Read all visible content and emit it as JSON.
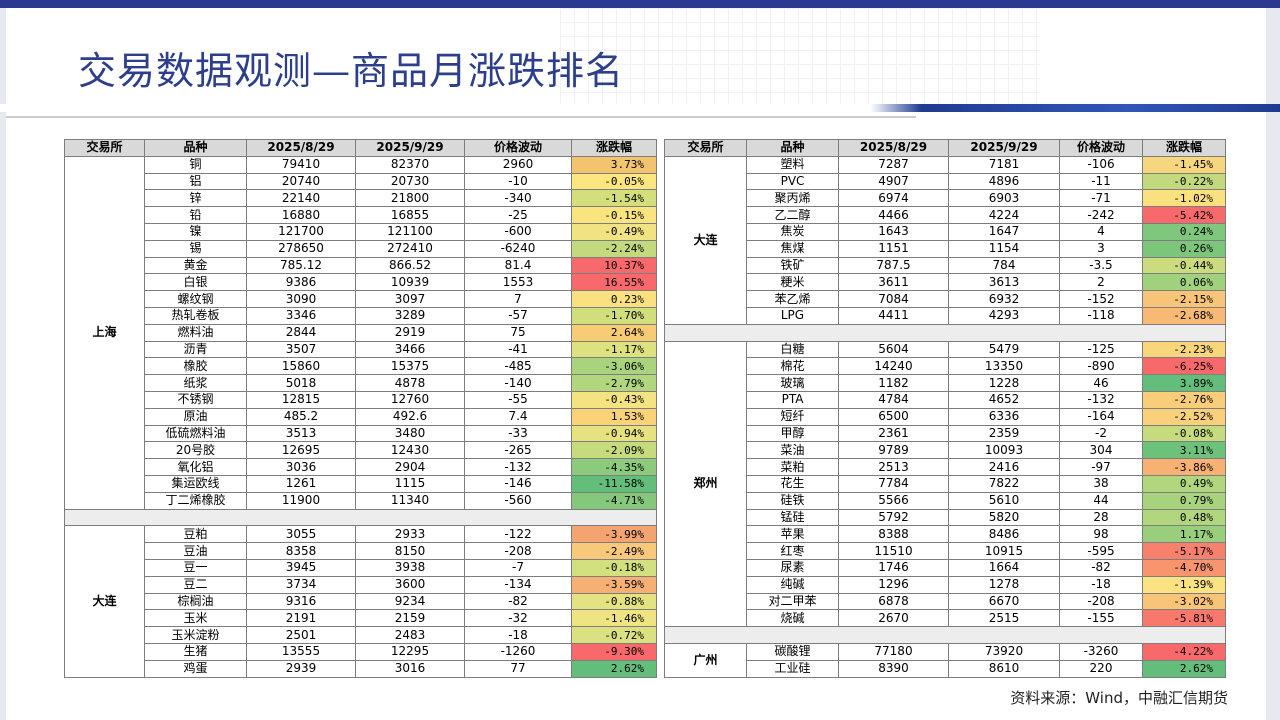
{
  "title": "交易数据观测—商品月涨跌排名",
  "source": "资料来源：Wind，中融汇信期货",
  "headers": [
    "交易所",
    "品种",
    "2025/8/29",
    "2025/9/29",
    "价格波动",
    "涨跌幅"
  ],
  "left_groups": [
    {
      "exchange": "上海",
      "rows": [
        {
          "name": "铜",
          "v1": "79410",
          "v2": "82370",
          "chg": "2960",
          "pct": "3.73%",
          "color": "#f3c46e"
        },
        {
          "name": "铝",
          "v1": "20740",
          "v2": "20730",
          "chg": "-10",
          "pct": "-0.05%",
          "color": "#fbe680"
        },
        {
          "name": "锌",
          "v1": "22140",
          "v2": "21800",
          "chg": "-340",
          "pct": "-1.54%",
          "color": "#d4df7c"
        },
        {
          "name": "铅",
          "v1": "16880",
          "v2": "16855",
          "chg": "-25",
          "pct": "-0.15%",
          "color": "#f9e480"
        },
        {
          "name": "镍",
          "v1": "121700",
          "v2": "121100",
          "chg": "-600",
          "pct": "-0.49%",
          "color": "#f1e381"
        },
        {
          "name": "锡",
          "v1": "278650",
          "v2": "272410",
          "chg": "-6240",
          "pct": "-2.24%",
          "color": "#c2da7d"
        },
        {
          "name": "黄金",
          "v1": "785.12",
          "v2": "866.52",
          "chg": "81.4",
          "pct": "10.37%",
          "color": "#f8696b"
        },
        {
          "name": "白银",
          "v1": "9386",
          "v2": "10939",
          "chg": "1553",
          "pct": "16.55%",
          "color": "#f8696b"
        },
        {
          "name": "螺纹钢",
          "v1": "3090",
          "v2": "3097",
          "chg": "7",
          "pct": "0.23%",
          "color": "#fbe080"
        },
        {
          "name": "热轧卷板",
          "v1": "3346",
          "v2": "3289",
          "chg": "-57",
          "pct": "-1.70%",
          "color": "#d0de7c"
        },
        {
          "name": "燃料油",
          "v1": "2844",
          "v2": "2919",
          "chg": "75",
          "pct": "2.64%",
          "color": "#f8cc74"
        },
        {
          "name": "沥青",
          "v1": "3507",
          "v2": "3466",
          "chg": "-41",
          "pct": "-1.17%",
          "color": "#dde17e"
        },
        {
          "name": "橡胶",
          "v1": "15860",
          "v2": "15375",
          "chg": "-485",
          "pct": "-3.06%",
          "color": "#a9d37d"
        },
        {
          "name": "纸浆",
          "v1": "5018",
          "v2": "4878",
          "chg": "-140",
          "pct": "-2.79%",
          "color": "#b2d67d"
        },
        {
          "name": "不锈钢",
          "v1": "12815",
          "v2": "12760",
          "chg": "-55",
          "pct": "-0.43%",
          "color": "#f3e381"
        },
        {
          "name": "原油",
          "v1": "485.2",
          "v2": "492.6",
          "chg": "7.4",
          "pct": "1.53%",
          "color": "#fad379"
        },
        {
          "name": "低硫燃料油",
          "v1": "3513",
          "v2": "3480",
          "chg": "-33",
          "pct": "-0.94%",
          "color": "#e6e27f"
        },
        {
          "name": "20号胶",
          "v1": "12695",
          "v2": "12430",
          "chg": "-265",
          "pct": "-2.09%",
          "color": "#c6db7d"
        },
        {
          "name": "氧化铝",
          "v1": "3036",
          "v2": "2904",
          "chg": "-132",
          "pct": "-4.35%",
          "color": "#8ccb7c"
        },
        {
          "name": "集运欧线",
          "v1": "1261",
          "v2": "1115",
          "chg": "-146",
          "pct": "-11.58%",
          "color": "#63be7b"
        },
        {
          "name": "丁二烯橡胶",
          "v1": "11900",
          "v2": "11340",
          "chg": "-560",
          "pct": "-4.71%",
          "color": "#84c87c"
        }
      ]
    },
    {
      "exchange": "大连",
      "rows": [
        {
          "name": "豆粕",
          "v1": "3055",
          "v2": "2933",
          "chg": "-122",
          "pct": "-3.99%",
          "color": "#f4a471"
        },
        {
          "name": "豆油",
          "v1": "8358",
          "v2": "8150",
          "chg": "-208",
          "pct": "-2.49%",
          "color": "#f9c97b"
        },
        {
          "name": "豆一",
          "v1": "3945",
          "v2": "3938",
          "chg": "-7",
          "pct": "-0.18%",
          "color": "#d3e07f"
        },
        {
          "name": "豆二",
          "v1": "3734",
          "v2": "3600",
          "chg": "-134",
          "pct": "-3.59%",
          "color": "#f6b073"
        },
        {
          "name": "棕榈油",
          "v1": "9316",
          "v2": "9234",
          "chg": "-82",
          "pct": "-0.88%",
          "color": "#e3e381"
        },
        {
          "name": "玉米",
          "v1": "2191",
          "v2": "2159",
          "chg": "-32",
          "pct": "-1.46%",
          "color": "#f0e382"
        },
        {
          "name": "玉米淀粉",
          "v1": "2501",
          "v2": "2483",
          "chg": "-18",
          "pct": "-0.72%",
          "color": "#dbe181"
        },
        {
          "name": "生猪",
          "v1": "13555",
          "v2": "12295",
          "chg": "-1260",
          "pct": "-9.30%",
          "color": "#f8696b"
        },
        {
          "name": "鸡蛋",
          "v1": "2939",
          "v2": "3016",
          "chg": "77",
          "pct": "2.62%",
          "color": "#63be7b"
        }
      ]
    }
  ],
  "right_groups": [
    {
      "exchange": "大连",
      "rows": [
        {
          "name": "塑料",
          "v1": "7287",
          "v2": "7181",
          "chg": "-106",
          "pct": "-1.45%",
          "color": "#f6d780"
        },
        {
          "name": "PVC",
          "v1": "4907",
          "v2": "4896",
          "chg": "-11",
          "pct": "-0.22%",
          "color": "#c2da7d"
        },
        {
          "name": "聚丙烯",
          "v1": "6974",
          "v2": "6903",
          "chg": "-71",
          "pct": "-1.02%",
          "color": "#fbe080"
        },
        {
          "name": "乙二醇",
          "v1": "4466",
          "v2": "4224",
          "chg": "-242",
          "pct": "-5.42%",
          "color": "#f8696b"
        },
        {
          "name": "焦炭",
          "v1": "1643",
          "v2": "1647",
          "chg": "4",
          "pct": "0.24%",
          "color": "#7fc77c"
        },
        {
          "name": "焦煤",
          "v1": "1151",
          "v2": "1154",
          "chg": "3",
          "pct": "0.26%",
          "color": "#7cc67c"
        },
        {
          "name": "铁矿",
          "v1": "787.5",
          "v2": "784",
          "chg": "-3.5",
          "pct": "-0.44%",
          "color": "#cadc7e"
        },
        {
          "name": "粳米",
          "v1": "3611",
          "v2": "3613",
          "chg": "2",
          "pct": "0.06%",
          "color": "#a2d17d"
        },
        {
          "name": "苯乙烯",
          "v1": "7084",
          "v2": "6932",
          "chg": "-152",
          "pct": "-2.15%",
          "color": "#f8c477"
        },
        {
          "name": "LPG",
          "v1": "4411",
          "v2": "4293",
          "chg": "-118",
          "pct": "-2.68%",
          "color": "#f7b974"
        }
      ]
    },
    {
      "exchange": "郑州",
      "rows": [
        {
          "name": "白糖",
          "v1": "5604",
          "v2": "5479",
          "chg": "-125",
          "pct": "-2.23%",
          "color": "#f9d67c"
        },
        {
          "name": "棉花",
          "v1": "14240",
          "v2": "13350",
          "chg": "-890",
          "pct": "-6.25%",
          "color": "#f8696b"
        },
        {
          "name": "玻璃",
          "v1": "1182",
          "v2": "1228",
          "chg": "46",
          "pct": "3.89%",
          "color": "#63be7b"
        },
        {
          "name": "PTA",
          "v1": "4784",
          "v2": "4652",
          "chg": "-132",
          "pct": "-2.76%",
          "color": "#f9cd7a"
        },
        {
          "name": "短纤",
          "v1": "6500",
          "v2": "6336",
          "chg": "-164",
          "pct": "-2.52%",
          "color": "#f9d17b"
        },
        {
          "name": "甲醇",
          "v1": "2361",
          "v2": "2359",
          "chg": "-2",
          "pct": "-0.08%",
          "color": "#c6db7e"
        },
        {
          "name": "菜油",
          "v1": "9789",
          "v2": "10093",
          "chg": "304",
          "pct": "3.11%",
          "color": "#6cc17b"
        },
        {
          "name": "菜粕",
          "v1": "2513",
          "v2": "2416",
          "chg": "-97",
          "pct": "-3.86%",
          "color": "#f7b173"
        },
        {
          "name": "花生",
          "v1": "7784",
          "v2": "7822",
          "chg": "38",
          "pct": "0.49%",
          "color": "#b1d67e"
        },
        {
          "name": "硅铁",
          "v1": "5566",
          "v2": "5610",
          "chg": "44",
          "pct": "0.79%",
          "color": "#a7d37d"
        },
        {
          "name": "锰硅",
          "v1": "5792",
          "v2": "5820",
          "chg": "28",
          "pct": "0.48%",
          "color": "#b1d67e"
        },
        {
          "name": "苹果",
          "v1": "8388",
          "v2": "8486",
          "chg": "98",
          "pct": "1.17%",
          "color": "#99ce7d"
        },
        {
          "name": "红枣",
          "v1": "11510",
          "v2": "10915",
          "chg": "-595",
          "pct": "-5.17%",
          "color": "#f8816d"
        },
        {
          "name": "尿素",
          "v1": "1746",
          "v2": "1664",
          "chg": "-82",
          "pct": "-4.70%",
          "color": "#f8956f"
        },
        {
          "name": "纯碱",
          "v1": "1296",
          "v2": "1278",
          "chg": "-18",
          "pct": "-1.39%",
          "color": "#fbe383"
        },
        {
          "name": "对二甲苯",
          "v1": "6878",
          "v2": "6670",
          "chg": "-208",
          "pct": "-3.02%",
          "color": "#f8c477"
        },
        {
          "name": "烧碱",
          "v1": "2670",
          "v2": "2515",
          "chg": "-155",
          "pct": "-5.81%",
          "color": "#f8786c"
        }
      ]
    },
    {
      "exchange": "广州",
      "rows": [
        {
          "name": "碳酸锂",
          "v1": "77180",
          "v2": "73920",
          "chg": "-3260",
          "pct": "-4.22%",
          "color": "#f8696b"
        },
        {
          "name": "工业硅",
          "v1": "8390",
          "v2": "8610",
          "chg": "220",
          "pct": "2.62%",
          "color": "#63be7b"
        }
      ]
    }
  ]
}
